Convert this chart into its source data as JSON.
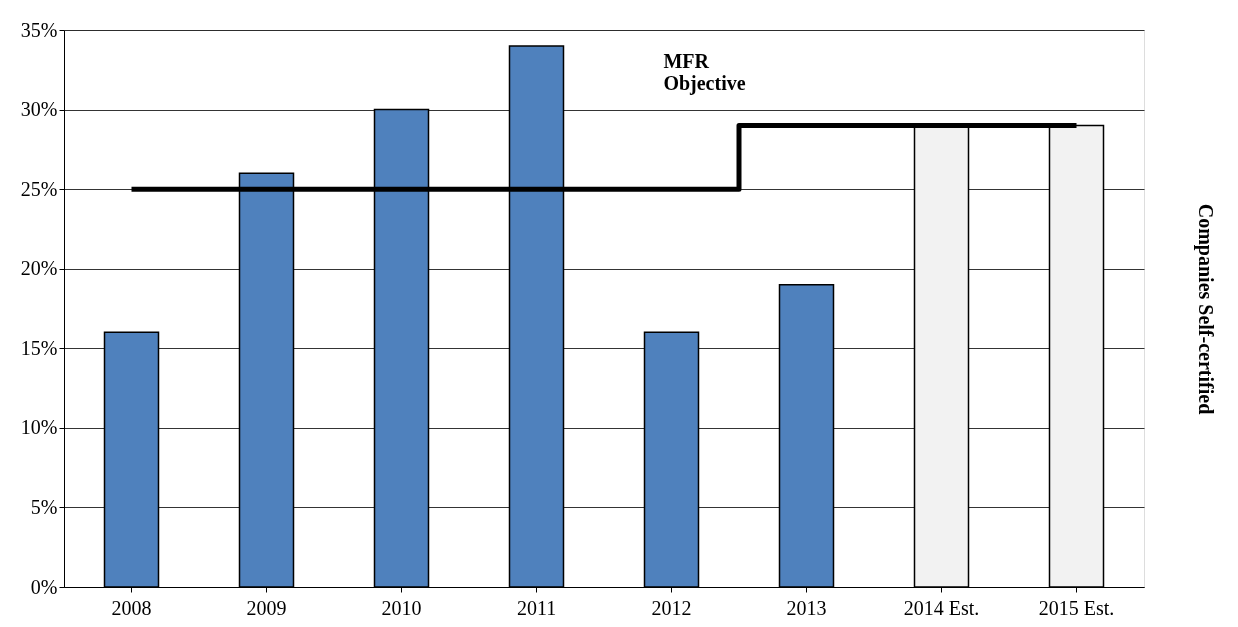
{
  "chart_data": {
    "type": "bar",
    "y2label": "Companies Self-certified",
    "categories": [
      "2008",
      "2009",
      "2010",
      "2011",
      "2012",
      "2013",
      "2014 Est.",
      "2015 Est."
    ],
    "series": [
      {
        "values": [
          16,
          26,
          30,
          34,
          16,
          19,
          29,
          29
        ],
        "colors": [
          "#4f81bd",
          "#4f81bd",
          "#4f81bd",
          "#4f81bd",
          "#4f81bd",
          "#4f81bd",
          "#f2f2f2",
          "#f2f2f2"
        ]
      },
      {
        "type": "step",
        "color": "#000000",
        "values": [
          25,
          25,
          25,
          25,
          25,
          29,
          29,
          29
        ]
      }
    ],
    "ylim": [
      0,
      35
    ],
    "yticks": [
      {
        "value": 0,
        "label": "0%"
      },
      {
        "value": 5,
        "label": "5%"
      },
      {
        "value": 10,
        "label": "10%"
      },
      {
        "value": 15,
        "label": "15%"
      },
      {
        "value": 20,
        "label": "20%"
      },
      {
        "value": 25,
        "label": "25%"
      },
      {
        "value": 30,
        "label": "30%"
      },
      {
        "value": 35,
        "label": "35%"
      }
    ],
    "grid": "y",
    "annotations": [
      "MFR\nObjective"
    ]
  }
}
